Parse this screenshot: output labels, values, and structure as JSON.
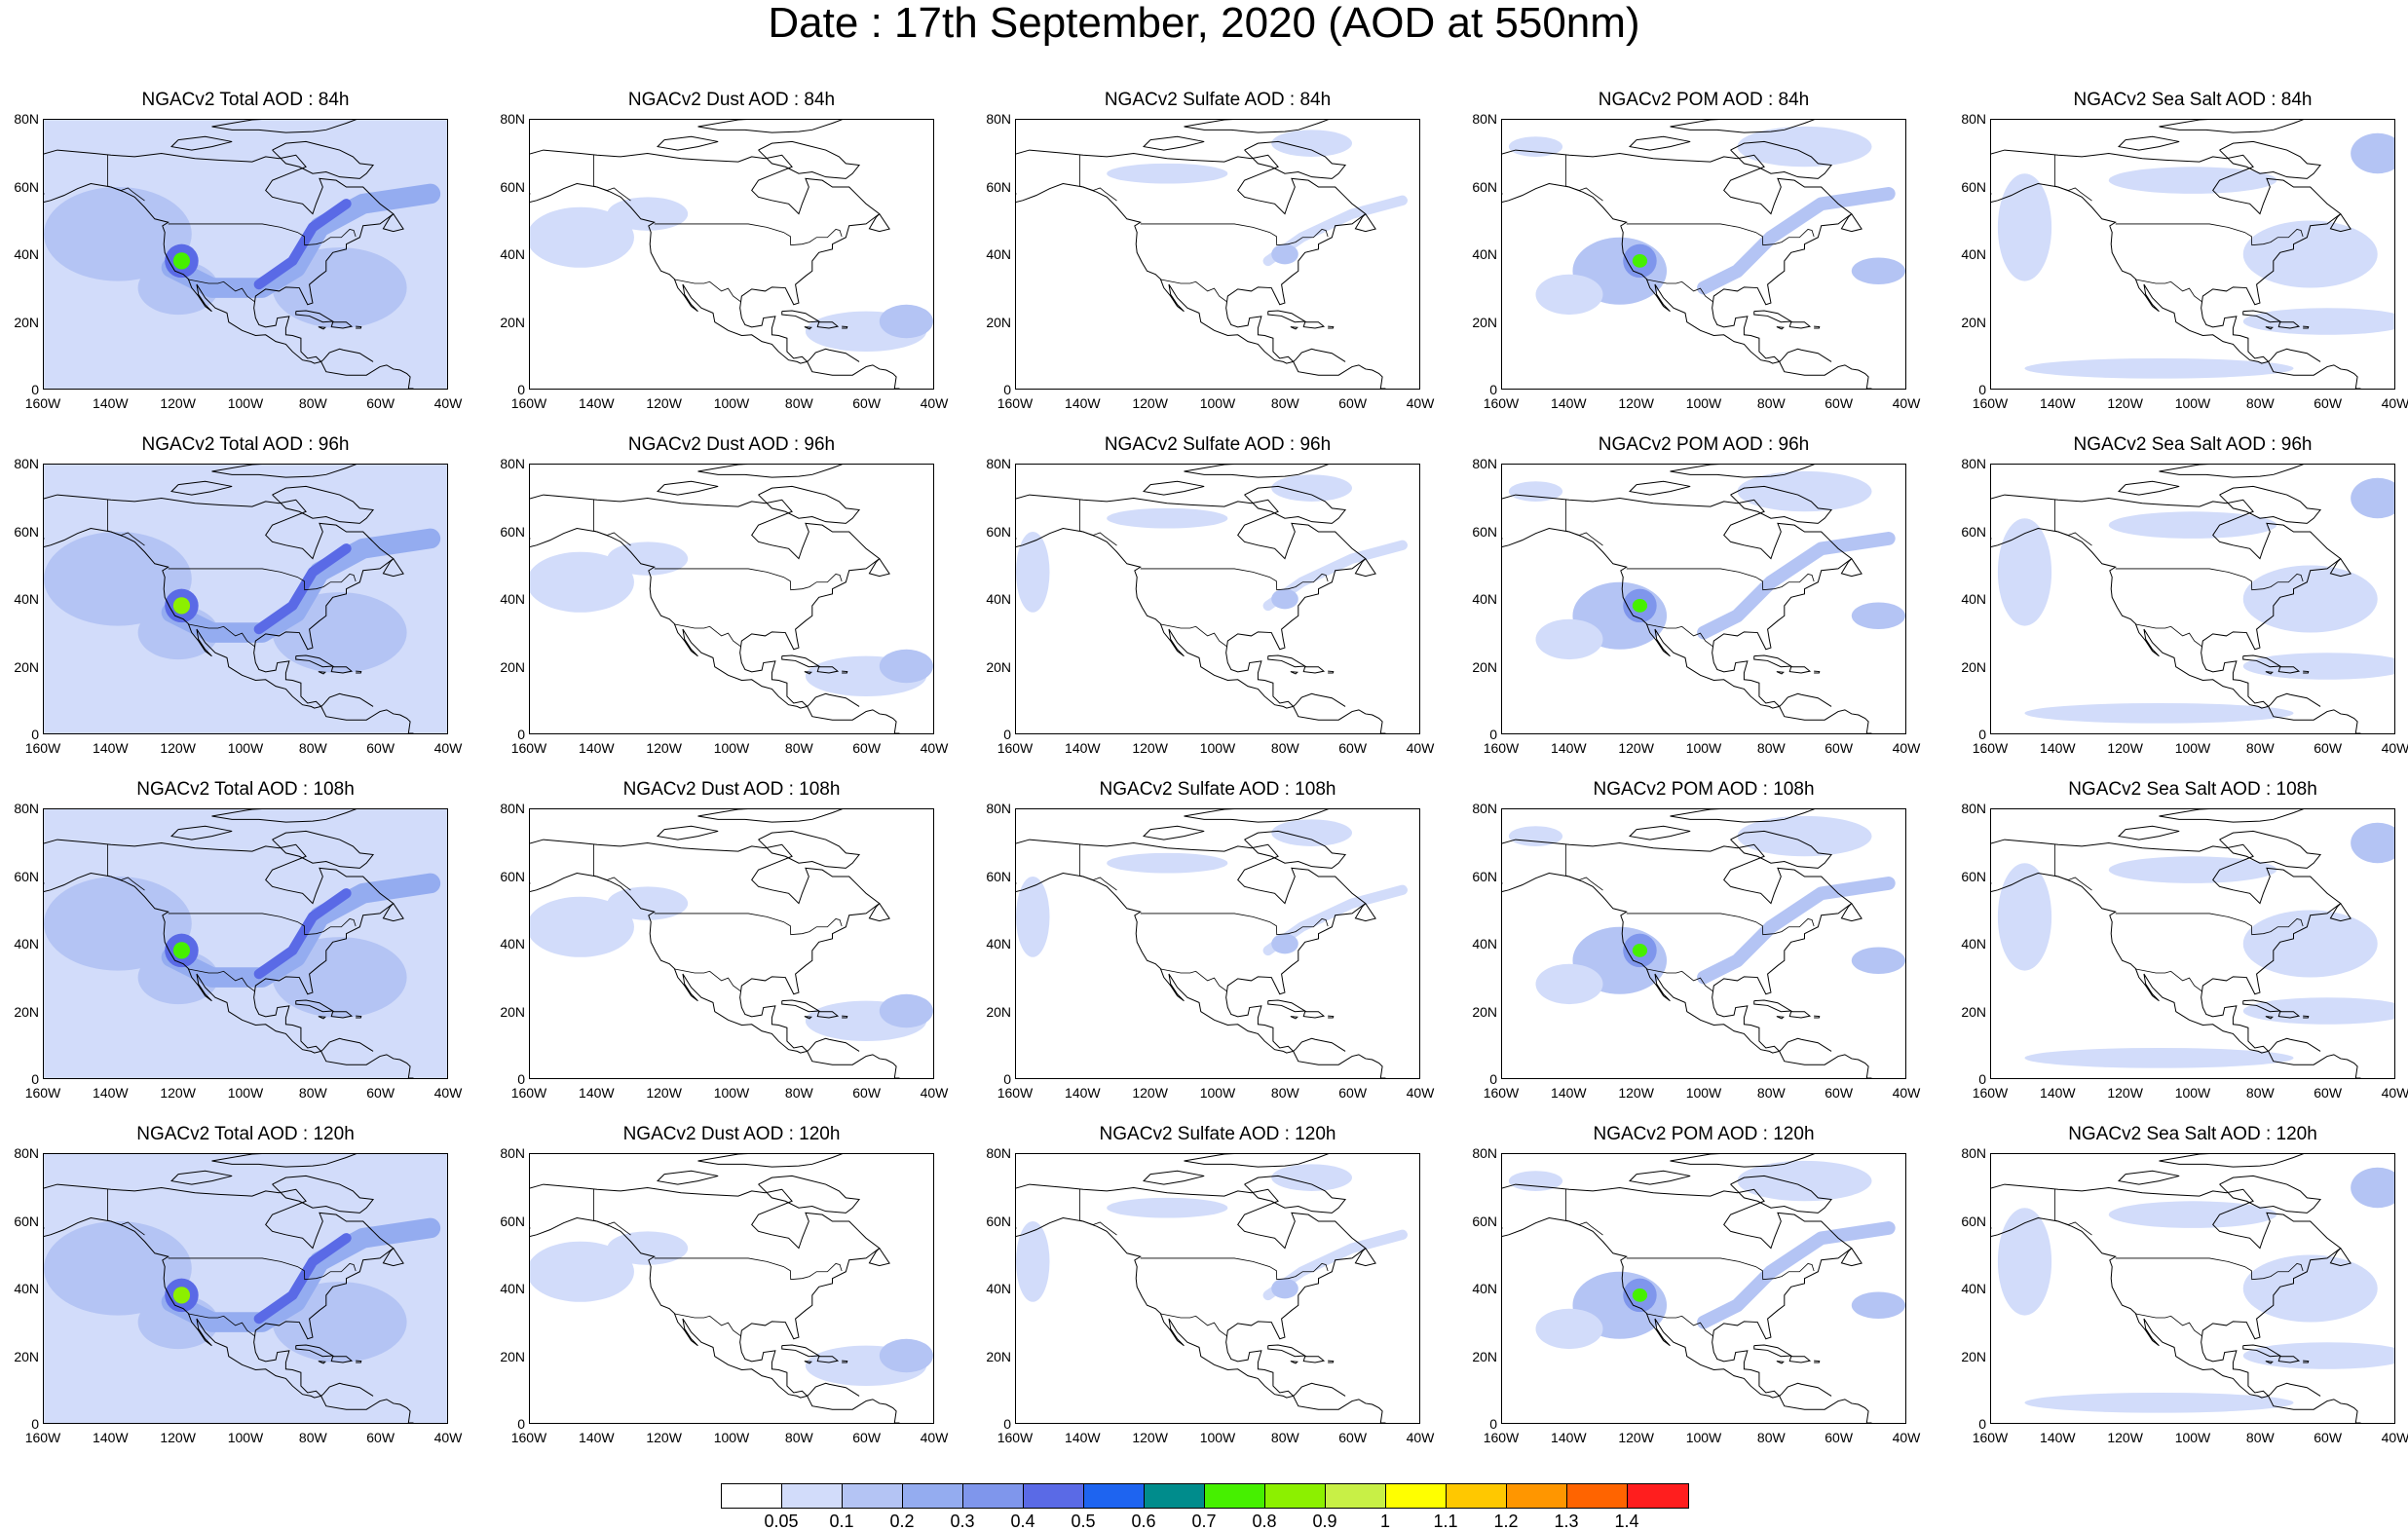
{
  "title": "Date : 17th September, 2020 (AOD at 550nm)",
  "rows": [
    {
      "panels": [
        "NGACv2 Total AOD : 84h",
        "NGACv2 Dust AOD : 84h",
        "NGACv2 Sulfate AOD : 84h",
        "NGACv2 POM AOD : 84h",
        "NGACv2 Sea Salt AOD : 84h"
      ]
    },
    {
      "panels": [
        "NGACv2 Total AOD : 96h",
        "NGACv2 Dust AOD : 96h",
        "NGACv2 Sulfate AOD : 96h",
        "NGACv2 POM AOD : 96h",
        "NGACv2 Sea Salt AOD : 96h"
      ]
    },
    {
      "panels": [
        "NGACv2 Total AOD : 108h",
        "NGACv2 Dust AOD : 108h",
        "NGACv2 Sulfate AOD : 108h",
        "NGACv2 POM AOD : 108h",
        "NGACv2 Sea Salt AOD : 108h"
      ]
    },
    {
      "panels": [
        "NGACv2 Total AOD : 120h",
        "NGACv2 Dust AOD : 120h",
        "NGACv2 Sulfate AOD : 120h",
        "NGACv2 POM AOD : 120h",
        "NGACv2 Sea Salt  AOD : 120h"
      ]
    }
  ],
  "axes": {
    "lat_labels": [
      "80N",
      "60N",
      "40N",
      "20N",
      "0"
    ],
    "lon_labels": [
      "160W",
      "140W",
      "120W",
      "100W",
      "80W",
      "60W",
      "40W"
    ]
  },
  "colorbar": {
    "colors": [
      "#ffffff",
      "#d2dcfa",
      "#b4c4f4",
      "#94acf0",
      "#7f96ec",
      "#5a6ae6",
      "#1e64f0",
      "#008c8c",
      "#46f000",
      "#8cf000",
      "#c8f046",
      "#ffff00",
      "#ffc800",
      "#ff9600",
      "#ff6400",
      "#ff1e1e"
    ],
    "labels": [
      "0.05",
      "0.1",
      "0.2",
      "0.3",
      "0.4",
      "0.5",
      "0.6",
      "0.7",
      "0.8",
      "0.9",
      "1",
      "1.1",
      "1.2",
      "1.3",
      "1.4"
    ]
  }
}
